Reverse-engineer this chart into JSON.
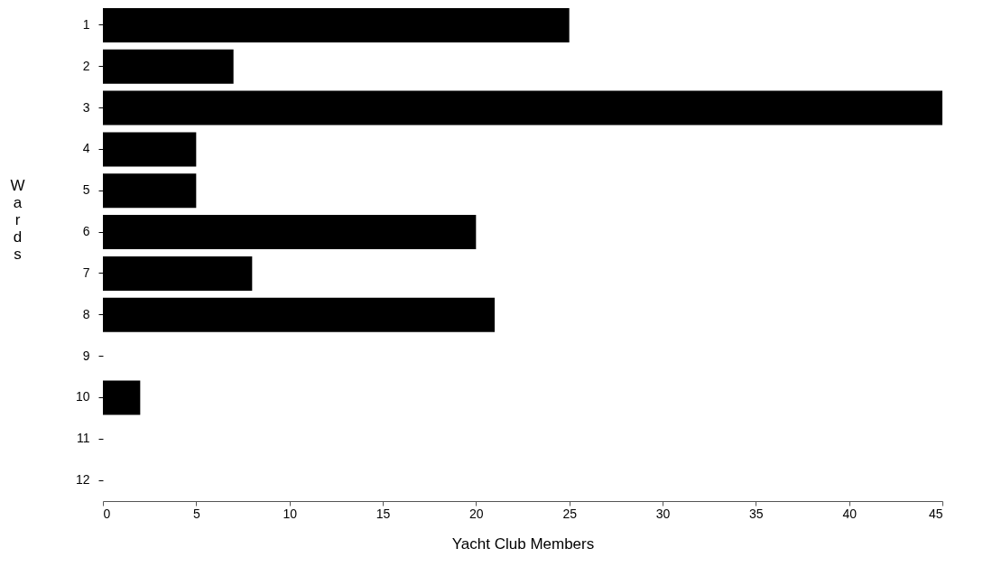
{
  "chart_data": {
    "type": "bar",
    "orientation": "horizontal",
    "xlabel": "Yacht Club Members",
    "ylabel": "Wards",
    "categories": [
      "1",
      "2",
      "3",
      "4",
      "5",
      "6",
      "7",
      "8",
      "9",
      "10",
      "11",
      "12"
    ],
    "values": [
      25,
      7,
      45,
      5,
      5,
      20,
      8,
      21,
      0,
      2,
      0,
      0
    ],
    "color": "#000000",
    "xlim": [
      0,
      45
    ],
    "xticks": [
      0,
      5,
      10,
      15,
      20,
      25,
      30,
      35,
      40,
      45
    ],
    "grid": false
  }
}
